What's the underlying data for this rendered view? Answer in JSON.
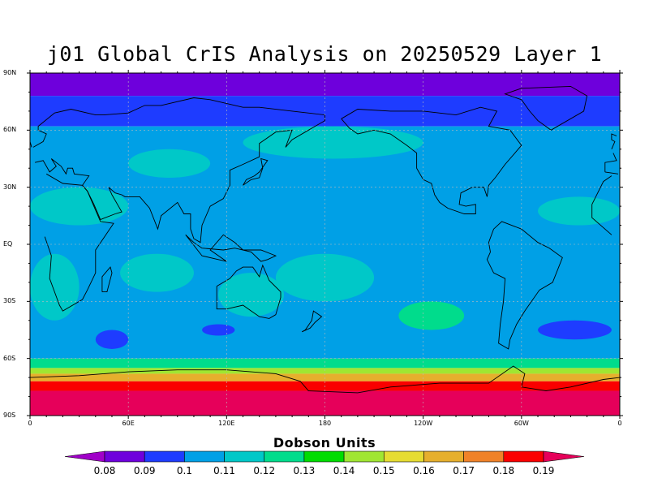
{
  "title": "j01 Global CrIS Analysis on 20250529 Layer 1",
  "lat_labels": [
    "90N",
    "60N",
    "30N",
    "EQ",
    "30S",
    "60S",
    "90S"
  ],
  "lon_labels": [
    "0",
    "60E",
    "120E",
    "180",
    "120W",
    "60W",
    "0"
  ],
  "colorbar": {
    "title": "Dobson Units",
    "ticks": [
      "0.08",
      "0.09",
      "0.1",
      "0.11",
      "0.12",
      "0.13",
      "0.14",
      "0.15",
      "0.16",
      "0.17",
      "0.18",
      "0.19"
    ],
    "colors": [
      "#a000c8",
      "#6e00dc",
      "#1e3cff",
      "#00a0e6",
      "#00c8c8",
      "#00dc8c",
      "#00dc00",
      "#a0e632",
      "#e6dc32",
      "#e6af2d",
      "#f08228",
      "#fa0000",
      "#e6005a"
    ]
  },
  "chart_data": {
    "type": "heatmap",
    "title": "j01 Global CrIS Analysis on 20250529 Layer 1",
    "projection": "cylindrical equidistant",
    "lon_range": [
      0,
      360
    ],
    "lat_range": [
      -90,
      90
    ],
    "lat_ticks": [
      "90N",
      "60N",
      "30N",
      "EQ",
      "30S",
      "60S",
      "90S"
    ],
    "lon_ticks": [
      "0",
      "60E",
      "120E",
      "180",
      "120W",
      "60W",
      "0"
    ],
    "colorbar_label": "Dobson Units",
    "levels": [
      0.08,
      0.09,
      0.1,
      0.11,
      0.12,
      0.13,
      0.14,
      0.15,
      0.16,
      0.17,
      0.18,
      0.19
    ],
    "zonal_bands": [
      {
        "lat_range": [
          78,
          90
        ],
        "value": 0.085
      },
      {
        "lat_range": [
          62,
          78
        ],
        "value": 0.095
      },
      {
        "lat_range": [
          -60,
          62
        ],
        "value": 0.105
      },
      {
        "lat_range": [
          -65,
          -60
        ],
        "value": 0.125
      },
      {
        "lat_range": [
          -68,
          -65
        ],
        "value": 0.145
      },
      {
        "lat_range": [
          -72,
          -68
        ],
        "value": 0.16
      },
      {
        "lat_range": [
          -77,
          -72
        ],
        "value": 0.18
      },
      {
        "lat_range": [
          -90,
          -77
        ],
        "value": 0.195
      }
    ],
    "regions": [
      {
        "name": "north-africa-arabia",
        "lon": [
          0,
          60
        ],
        "lat": [
          10,
          30
        ],
        "value": 0.115
      },
      {
        "name": "central-asia",
        "lon": [
          60,
          110
        ],
        "lat": [
          35,
          50
        ],
        "value": 0.115
      },
      {
        "name": "tropical-indian-ocean",
        "lon": [
          55,
          100
        ],
        "lat": [
          -25,
          -5
        ],
        "value": 0.115
      },
      {
        "name": "australia",
        "lon": [
          115,
          155
        ],
        "lat": [
          -38,
          -15
        ],
        "value": 0.115
      },
      {
        "name": "central-pacific-south",
        "lon": [
          150,
          210
        ],
        "lat": [
          -30,
          -5
        ],
        "value": 0.115
      },
      {
        "name": "south-pacific",
        "lon": [
          225,
          265
        ],
        "lat": [
          -45,
          -30
        ],
        "value": 0.12
      },
      {
        "name": "south-atlantic-africa",
        "lon": [
          0,
          30
        ],
        "lat": [
          -40,
          -5
        ],
        "value": 0.115
      },
      {
        "name": "north-atlantic-tropics",
        "lon": [
          310,
          360
        ],
        "lat": [
          10,
          25
        ],
        "value": 0.115
      },
      {
        "name": "southern-ocean-low-atlantic",
        "lon": [
          310,
          355
        ],
        "lat": [
          -50,
          -40
        ],
        "value": 0.095
      },
      {
        "name": "southern-ocean-low-indian",
        "lon": [
          40,
          60
        ],
        "lat": [
          -55,
          -45
        ],
        "value": 0.095
      },
      {
        "name": "southern-ocean-low-australia",
        "lon": [
          105,
          125
        ],
        "lat": [
          -48,
          -42
        ],
        "value": 0.095
      },
      {
        "name": "north-pacific-band",
        "lon": [
          130,
          240
        ],
        "lat": [
          45,
          62
        ],
        "value": 0.11
      }
    ]
  }
}
